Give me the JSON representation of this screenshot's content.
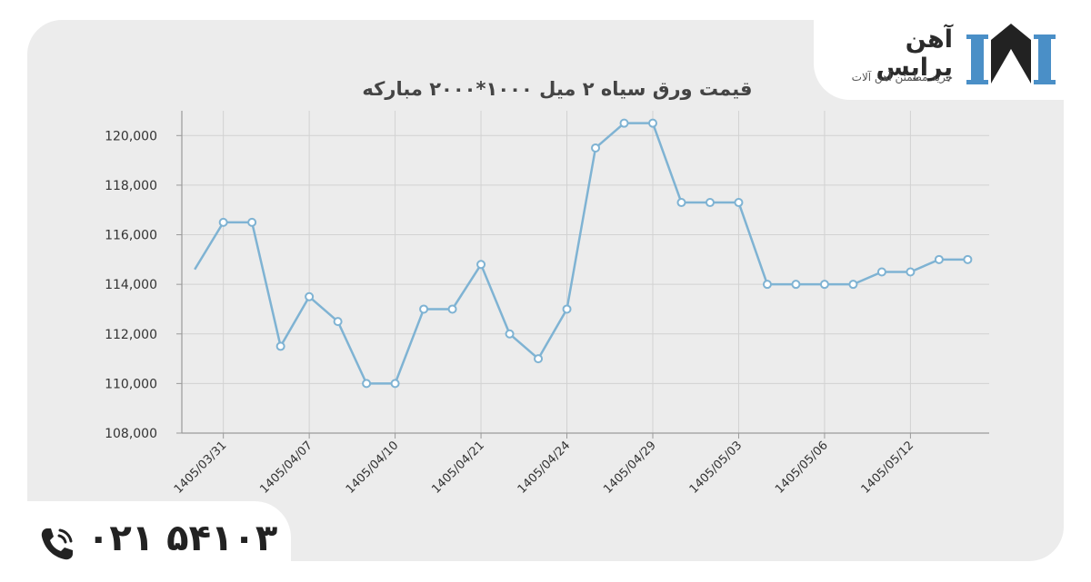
{
  "brand": {
    "name": "آهن پرایس",
    "tagline": "خرید مطمئن آهن آلات"
  },
  "contact": {
    "phone": "۰۲۱ ۵۴۱۰۳"
  },
  "colors": {
    "line": "#7fb3d3",
    "panel": "#ececec",
    "logo_blue": "#4a8fc7",
    "logo_dark": "#222222"
  },
  "chart_data": {
    "type": "line",
    "title": "قیمت ورق سیاه ۲ میل ۱۰۰۰*۲۰۰۰ مبارکه",
    "xlabel": "",
    "ylabel": "",
    "ylim": [
      108000,
      121000
    ],
    "yticks": [
      "108,000",
      "110,000",
      "112,000",
      "114,000",
      "116,000",
      "118,000",
      "120,000"
    ],
    "ytick_values": [
      108000,
      110000,
      112000,
      114000,
      116000,
      118000,
      120000
    ],
    "grid": true,
    "xtick_labels": [
      "1405/03/31",
      "1405/04/07",
      "1405/04/10",
      "1405/04/21",
      "1405/04/24",
      "1405/04/29",
      "1405/05/03",
      "1405/05/06",
      "1405/05/12"
    ],
    "xtick_positions": [
      1,
      4,
      7,
      10,
      13,
      16,
      19,
      22,
      25
    ],
    "series": [
      {
        "x": [
          0,
          1,
          2,
          3,
          4,
          5,
          6,
          7,
          8,
          9,
          10,
          11,
          12,
          13,
          14,
          15,
          16,
          17,
          18,
          19,
          20,
          21,
          22,
          23,
          24,
          25,
          26,
          27
        ],
        "values": [
          114600,
          116500,
          116500,
          111500,
          113500,
          112500,
          110000,
          110000,
          113000,
          113000,
          114800,
          112000,
          111000,
          113000,
          119500,
          120500,
          120500,
          117300,
          117300,
          117300,
          114000,
          114000,
          114000,
          114000,
          114500,
          114500,
          115000,
          115000
        ],
        "markers": [
          false,
          true,
          true,
          true,
          true,
          true,
          true,
          true,
          true,
          true,
          true,
          true,
          true,
          true,
          true,
          true,
          true,
          true,
          true,
          true,
          true,
          true,
          true,
          true,
          true,
          true,
          true,
          true
        ]
      }
    ]
  }
}
